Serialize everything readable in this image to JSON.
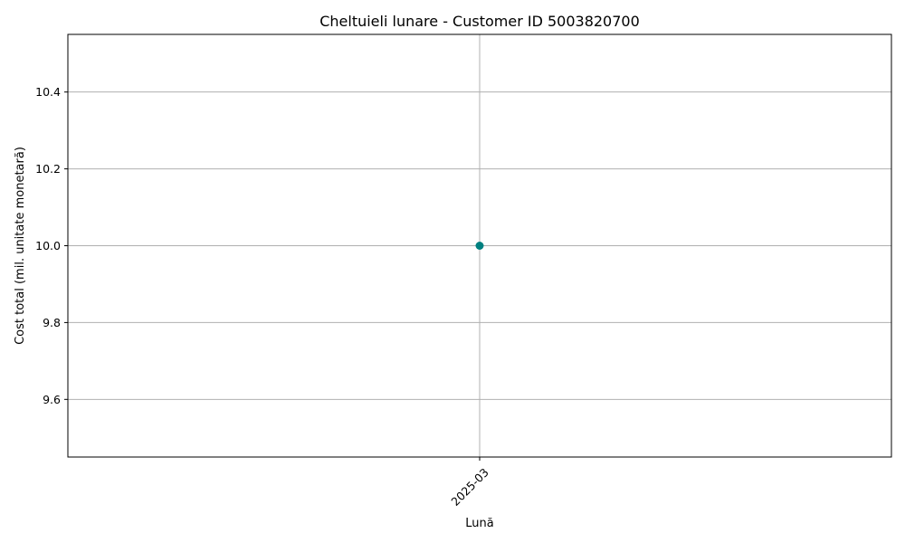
{
  "chart_data": {
    "type": "line",
    "title": "Cheltuieli lunare - Customer ID 5003820700",
    "xlabel": "Lună",
    "ylabel": "Cost total (mil. unitate monetară)",
    "x": [
      "2025-03"
    ],
    "series": [
      {
        "values": [
          10.0
        ],
        "color": "#008080"
      }
    ],
    "ylim": [
      9.45,
      10.55
    ],
    "yticks": [
      9.6,
      9.8,
      10.0,
      10.2,
      10.4
    ],
    "ytick_labels": [
      "9.6",
      "9.8",
      "10.0",
      "10.2",
      "10.4"
    ],
    "xtick_labels": [
      "2025-03"
    ],
    "xtick_rotation": 45,
    "grid": true,
    "marker": "circle"
  }
}
